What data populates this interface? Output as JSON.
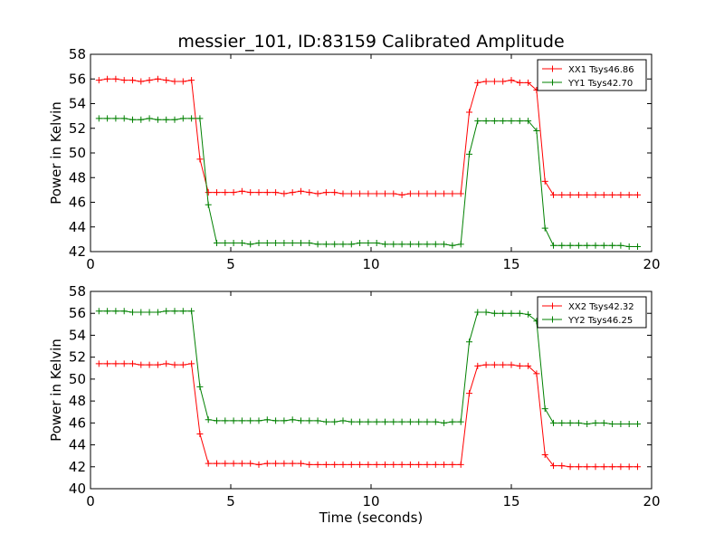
{
  "chart_data": [
    {
      "type": "line",
      "title": "messier_101, ID:83159 Calibrated Amplitude",
      "xlabel": "",
      "ylabel": "Power in Kelvin",
      "xlim": [
        0,
        20
      ],
      "ylim": [
        42,
        58
      ],
      "xticks": [
        0,
        5,
        10,
        15,
        20
      ],
      "yticks": [
        42,
        44,
        46,
        48,
        50,
        52,
        54,
        56,
        58
      ],
      "grid": false,
      "legend_position": "top-right",
      "x": [
        0.3,
        0.6,
        0.9,
        1.2,
        1.5,
        1.8,
        2.1,
        2.4,
        2.7,
        3.0,
        3.3,
        3.6,
        3.9,
        4.2,
        4.5,
        4.8,
        5.1,
        5.4,
        5.7,
        6.0,
        6.3,
        6.6,
        6.9,
        7.2,
        7.5,
        7.8,
        8.1,
        8.4,
        8.7,
        9.0,
        9.3,
        9.6,
        9.9,
        10.2,
        10.5,
        10.8,
        11.1,
        11.4,
        11.7,
        12.0,
        12.3,
        12.6,
        12.9,
        13.2,
        13.5,
        13.8,
        14.1,
        14.4,
        14.7,
        15.0,
        15.3,
        15.6,
        15.9,
        16.2,
        16.5,
        16.8,
        17.1,
        17.4,
        17.7,
        18.0,
        18.3,
        18.6,
        18.9,
        19.2,
        19.5
      ],
      "series": [
        {
          "name": "XX1 Tsys46.86",
          "color": "#ff0000",
          "values": [
            55.9,
            56.0,
            56.0,
            55.9,
            55.9,
            55.8,
            55.9,
            56.0,
            55.9,
            55.8,
            55.8,
            55.9,
            49.5,
            46.8,
            46.8,
            46.8,
            46.8,
            46.9,
            46.8,
            46.8,
            46.8,
            46.8,
            46.7,
            46.8,
            46.9,
            46.8,
            46.7,
            46.8,
            46.8,
            46.7,
            46.7,
            46.7,
            46.7,
            46.7,
            46.7,
            46.7,
            46.6,
            46.7,
            46.7,
            46.7,
            46.7,
            46.7,
            46.7,
            46.7,
            53.3,
            55.7,
            55.8,
            55.8,
            55.8,
            55.9,
            55.7,
            55.7,
            55.1,
            47.7,
            46.6,
            46.6,
            46.6,
            46.6,
            46.6,
            46.6,
            46.6,
            46.6,
            46.6,
            46.6,
            46.6
          ]
        },
        {
          "name": "YY1 Tsys42.70",
          "color": "#008000",
          "values": [
            52.8,
            52.8,
            52.8,
            52.8,
            52.7,
            52.7,
            52.8,
            52.7,
            52.7,
            52.7,
            52.8,
            52.8,
            52.8,
            45.8,
            42.7,
            42.7,
            42.7,
            42.7,
            42.6,
            42.7,
            42.7,
            42.7,
            42.7,
            42.7,
            42.7,
            42.7,
            42.6,
            42.6,
            42.6,
            42.6,
            42.6,
            42.7,
            42.7,
            42.7,
            42.6,
            42.6,
            42.6,
            42.6,
            42.6,
            42.6,
            42.6,
            42.6,
            42.5,
            42.6,
            49.9,
            52.6,
            52.6,
            52.6,
            52.6,
            52.6,
            52.6,
            52.6,
            51.8,
            43.9,
            42.5,
            42.5,
            42.5,
            42.5,
            42.5,
            42.5,
            42.5,
            42.5,
            42.5,
            42.4,
            42.4
          ]
        }
      ]
    },
    {
      "type": "line",
      "title": "",
      "xlabel": "Time (seconds)",
      "ylabel": "Power in Kelvin",
      "xlim": [
        0,
        20
      ],
      "ylim": [
        40,
        58
      ],
      "xticks": [
        0,
        5,
        10,
        15,
        20
      ],
      "yticks": [
        40,
        42,
        44,
        46,
        48,
        50,
        52,
        54,
        56,
        58
      ],
      "grid": false,
      "legend_position": "top-right",
      "x": [
        0.3,
        0.6,
        0.9,
        1.2,
        1.5,
        1.8,
        2.1,
        2.4,
        2.7,
        3.0,
        3.3,
        3.6,
        3.9,
        4.2,
        4.5,
        4.8,
        5.1,
        5.4,
        5.7,
        6.0,
        6.3,
        6.6,
        6.9,
        7.2,
        7.5,
        7.8,
        8.1,
        8.4,
        8.7,
        9.0,
        9.3,
        9.6,
        9.9,
        10.2,
        10.5,
        10.8,
        11.1,
        11.4,
        11.7,
        12.0,
        12.3,
        12.6,
        12.9,
        13.2,
        13.5,
        13.8,
        14.1,
        14.4,
        14.7,
        15.0,
        15.3,
        15.6,
        15.9,
        16.2,
        16.5,
        16.8,
        17.1,
        17.4,
        17.7,
        18.0,
        18.3,
        18.6,
        18.9,
        19.2,
        19.5
      ],
      "series": [
        {
          "name": "XX2 Tsys42.32",
          "color": "#ff0000",
          "values": [
            51.4,
            51.4,
            51.4,
            51.4,
            51.4,
            51.3,
            51.3,
            51.3,
            51.4,
            51.3,
            51.3,
            51.4,
            45.0,
            42.3,
            42.3,
            42.3,
            42.3,
            42.3,
            42.3,
            42.2,
            42.3,
            42.3,
            42.3,
            42.3,
            42.3,
            42.2,
            42.2,
            42.2,
            42.2,
            42.2,
            42.2,
            42.2,
            42.2,
            42.2,
            42.2,
            42.2,
            42.2,
            42.2,
            42.2,
            42.2,
            42.2,
            42.2,
            42.2,
            42.2,
            48.7,
            51.2,
            51.3,
            51.3,
            51.3,
            51.3,
            51.2,
            51.2,
            50.5,
            43.1,
            42.1,
            42.1,
            42.0,
            42.0,
            42.0,
            42.0,
            42.0,
            42.0,
            42.0,
            42.0,
            42.0
          ]
        },
        {
          "name": "YY2 Tsys46.25",
          "color": "#008000",
          "values": [
            56.2,
            56.2,
            56.2,
            56.2,
            56.1,
            56.1,
            56.1,
            56.1,
            56.2,
            56.2,
            56.2,
            56.2,
            49.3,
            46.3,
            46.2,
            46.2,
            46.2,
            46.2,
            46.2,
            46.2,
            46.3,
            46.2,
            46.2,
            46.3,
            46.2,
            46.2,
            46.2,
            46.1,
            46.1,
            46.2,
            46.1,
            46.1,
            46.1,
            46.1,
            46.1,
            46.1,
            46.1,
            46.1,
            46.1,
            46.1,
            46.1,
            46.0,
            46.1,
            46.1,
            53.4,
            56.1,
            56.1,
            56.0,
            56.0,
            56.0,
            56.0,
            55.9,
            55.3,
            47.3,
            46.0,
            46.0,
            46.0,
            46.0,
            45.9,
            46.0,
            46.0,
            45.9,
            45.9,
            45.9,
            45.9
          ]
        }
      ]
    }
  ]
}
